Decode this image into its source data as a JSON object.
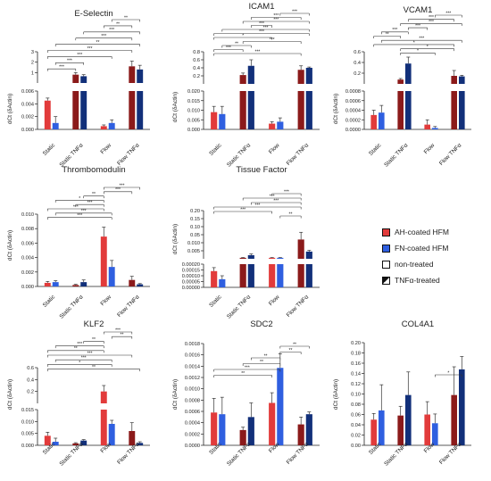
{
  "colors": {
    "ah_untreated": "#e23b3b",
    "ah_treated": "#8b1a1a",
    "fn_untreated": "#2f5fe0",
    "fn_treated": "#12307a",
    "axis": "#222222",
    "bracket": "#333333"
  },
  "legend": {
    "items": [
      {
        "label": "AH-coated HFM",
        "fill": "#e23b3b",
        "pattern": "solid"
      },
      {
        "label": "FN-coated HFM",
        "fill": "#2f5fe0",
        "pattern": "solid"
      },
      {
        "label": "non-treated",
        "fill": "#ffffff",
        "pattern": "solid"
      },
      {
        "label": "TNFα-treated",
        "fill": "#111111",
        "pattern": "split"
      }
    ]
  },
  "chart_data": [
    {
      "type": "bar",
      "title": "E-Selectin",
      "ylabel": "dCt (δActin)",
      "categories": [
        "Static",
        "Static TNFα",
        "Flow",
        "Flow TNFα"
      ],
      "upper": {
        "ticks": [
          "1",
          "2",
          "3"
        ],
        "ylim": [
          0,
          3
        ]
      },
      "lower": {
        "ticks": [
          "0.000",
          "0.002",
          "0.004",
          "0.006"
        ],
        "ylim": [
          0,
          0.006
        ]
      },
      "series": [
        {
          "name": "AH-coated HFM",
          "values": [
            0.0045,
            0.8,
            0.0005,
            1.6
          ],
          "errors": [
            0.0004,
            0.2,
            0.0002,
            0.5
          ]
        },
        {
          "name": "FN-coated HFM",
          "values": [
            0.001,
            0.65,
            0.001,
            1.3
          ],
          "errors": [
            0.001,
            0.15,
            0.0005,
            0.4
          ]
        }
      ],
      "significance": [
        "**",
        "**",
        "***",
        "***",
        "**",
        "***",
        "***",
        "***",
        "***"
      ]
    },
    {
      "type": "bar",
      "title": "ICAM1",
      "ylabel": "dCt (δActin)",
      "categories": [
        "Static",
        "Static TNFα",
        "Flow",
        "Flow TNFα"
      ],
      "upper": {
        "ticks": [
          "0.2",
          "0.4",
          "0.6",
          "0.8"
        ],
        "ylim": [
          0,
          0.8
        ]
      },
      "lower": {
        "ticks": [
          "0.000",
          "0.005",
          "0.010",
          "0.015",
          "0.020"
        ],
        "ylim": [
          0,
          0.02
        ]
      },
      "series": [
        {
          "name": "AH-coated HFM",
          "values": [
            0.009,
            0.22,
            0.003,
            0.35
          ],
          "errors": [
            0.003,
            0.05,
            0.001,
            0.1
          ]
        },
        {
          "name": "FN-coated HFM",
          "values": [
            0.008,
            0.45,
            0.004,
            0.4
          ],
          "errors": [
            0.004,
            0.15,
            0.002,
            0.02
          ]
        }
      ],
      "significance": [
        "***",
        "***",
        "***",
        "***",
        "***",
        "***",
        "*",
        "***",
        "**",
        "***",
        "***"
      ]
    },
    {
      "type": "bar",
      "title": "VCAM1",
      "ylabel": "dCt (δActin)",
      "categories": [
        "Static",
        "Static TNFα",
        "Flow",
        "Flow TNFα"
      ],
      "upper": {
        "ticks": [
          "0.2",
          "0.4",
          "0.6"
        ],
        "ylim": [
          0,
          0.6
        ]
      },
      "lower": {
        "ticks": [
          "0.0000",
          "0.0002",
          "0.0004",
          "0.0006",
          "0.0008"
        ],
        "ylim": [
          0,
          0.0008
        ]
      },
      "series": [
        {
          "name": "AH-coated HFM",
          "values": [
            0.0003,
            0.08,
            0.0001,
            0.15
          ],
          "errors": [
            0.0001,
            0.02,
            0.0001,
            0.1
          ]
        },
        {
          "name": "FN-coated HFM",
          "values": [
            0.00035,
            0.38,
            3e-05,
            0.14
          ],
          "errors": [
            0.00015,
            0.12,
            3e-05,
            0.02
          ]
        }
      ],
      "significance": [
        "***",
        "***",
        "***",
        "***",
        "***",
        "**",
        "***",
        "*",
        "*",
        "*"
      ]
    },
    {
      "type": "bar",
      "title": "Thrombomodulin",
      "ylabel": "dCt (δActin)",
      "categories": [
        "Static",
        "Static TNFα",
        "Flow",
        "Flow TNFα"
      ],
      "ticks": [
        "0.000",
        "0.002",
        "0.004",
        "0.006",
        "0.008",
        "0.010"
      ],
      "ylim": [
        0,
        0.01
      ],
      "series": [
        {
          "name": "AH-coated HFM",
          "values": [
            0.0005,
            0.0002,
            0.0069,
            0.0009
          ],
          "errors": [
            0.0002,
            0.0001,
            0.0013,
            0.0005
          ]
        },
        {
          "name": "FN-coated HFM",
          "values": [
            0.0006,
            0.0006,
            0.0027,
            0.0003
          ],
          "errors": [
            0.0002,
            0.0003,
            0.0009,
            0.0001
          ]
        }
      ],
      "significance": [
        "***",
        "***",
        "**",
        "*",
        "***",
        "***",
        "***",
        "***"
      ]
    },
    {
      "type": "bar",
      "title": "Tissue Factor",
      "ylabel": "dCt (δActin)",
      "categories": [
        "Static",
        "Static TNFα",
        "Flow",
        "Flow TNFα"
      ],
      "upper": {
        "ticks": [
          "0.005",
          "0.010",
          "0.05",
          "0.10",
          "0.15",
          "0.20"
        ],
        "ylim": [
          0,
          0.2
        ]
      },
      "lower": {
        "ticks": [
          "0.00000",
          "0.00005",
          "0.00010",
          "0.00015",
          "0.00020"
        ],
        "ylim": [
          0,
          0.0002
        ]
      },
      "series": [
        {
          "name": "AH-coated HFM",
          "values": [
            0.00014,
            0.004,
            0.004,
            0.08
          ],
          "errors": [
            3e-05,
            0.001,
            0.001,
            0.03
          ]
        },
        {
          "name": "FN-coated HFM",
          "values": [
            7e-05,
            0.015,
            0.004,
            0.03
          ],
          "errors": [
            3e-05,
            0.005,
            0.001,
            0.005
          ]
        }
      ],
      "significance": [
        "***",
        "***",
        "***",
        "***",
        "***",
        "**"
      ]
    },
    {
      "type": "bar",
      "title": "KLF2",
      "ylabel": "dCt (δActin)",
      "categories": [
        "Static",
        "Static TNFα",
        "Flow",
        "Flow TNFα"
      ],
      "upper": {
        "ticks": [
          "0.2",
          "0.4",
          "0.6"
        ],
        "ylim": [
          0,
          0.6
        ]
      },
      "lower": {
        "ticks": [
          "0.000",
          "0.005",
          "0.010",
          "0.015"
        ],
        "ylim": [
          0,
          0.015
        ]
      },
      "series": [
        {
          "name": "AH-coated HFM",
          "values": [
            0.004,
            0.0008,
            0.2,
            0.006
          ],
          "errors": [
            0.0015,
            0.0003,
            0.1,
            0.0035
          ]
        },
        {
          "name": "FN-coated HFM",
          "values": [
            0.0015,
            0.002,
            0.009,
            0.001
          ],
          "errors": [
            0.0015,
            0.0004,
            0.0015,
            0.0005
          ]
        }
      ],
      "significance": [
        "***",
        "**",
        "**",
        "***",
        "**",
        "***",
        "***",
        "*",
        "**"
      ]
    },
    {
      "type": "bar",
      "title": "SDC2",
      "ylabel": "dCt (δActin)",
      "categories": [
        "Static",
        "Static TNFα",
        "Flow",
        "Flow TNFα"
      ],
      "ticks": [
        "0.0000",
        "0.0002",
        "0.0004",
        "0.0006",
        "0.0008",
        "0.0010",
        "0.0012",
        "0.0014",
        "0.0016",
        "0.0018"
      ],
      "ylim": [
        0,
        0.0018
      ],
      "series": [
        {
          "name": "AH-coated HFM",
          "values": [
            0.00058,
            0.00027,
            0.00075,
            0.00037
          ],
          "errors": [
            0.00025,
            5e-05,
            0.00018,
            0.00013
          ]
        },
        {
          "name": "FN-coated HFM",
          "values": [
            0.00055,
            0.0005,
            0.00137,
            0.00055
          ],
          "errors": [
            0.0003,
            0.00025,
            0.00025,
            4e-05
          ]
        }
      ],
      "significance": [
        "**",
        "**",
        "**",
        "**",
        "***",
        "**"
      ]
    },
    {
      "type": "bar",
      "title": "COL4A1",
      "ylabel": "dCt (δActin)",
      "categories": [
        "Static",
        "Static TNFα",
        "Flow",
        "Flow TNFα"
      ],
      "ticks": [
        "0.00",
        "0.02",
        "0.04",
        "0.06",
        "0.08",
        "0.10",
        "0.12",
        "0.14",
        "0.16",
        "0.18",
        "0.20"
      ],
      "ylim": [
        0,
        0.2
      ],
      "series": [
        {
          "name": "AH-coated HFM",
          "values": [
            0.05,
            0.058,
            0.06,
            0.098
          ],
          "errors": [
            0.012,
            0.018,
            0.025,
            0.055
          ]
        },
        {
          "name": "FN-coated HFM",
          "values": [
            0.068,
            0.098,
            0.043,
            0.148
          ],
          "errors": [
            0.05,
            0.045,
            0.018,
            0.025
          ]
        }
      ],
      "significance": [
        "*"
      ]
    }
  ]
}
